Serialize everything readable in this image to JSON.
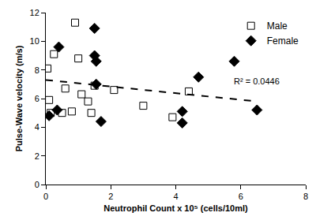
{
  "chart_data": {
    "type": "scatter",
    "x_label": "Neutrophil Count x 10⁵ (cells/10ml)",
    "y_label": "Pulse-Wave velocity (m/s)",
    "xlim": [
      0,
      8
    ],
    "xticks": [
      0,
      2,
      4,
      6,
      8
    ],
    "ylim": [
      0,
      12
    ],
    "yticks": [
      0,
      2,
      4,
      6,
      8,
      10,
      12
    ],
    "grid": false,
    "legend": "top-right",
    "series": [
      {
        "name": "Male",
        "type": "scatter",
        "marker": "square-open",
        "color": "#000000",
        "x": [
          0.05,
          0.1,
          0.15,
          0.25,
          0.5,
          0.6,
          0.8,
          0.9,
          1.0,
          1.1,
          1.3,
          1.4,
          1.5,
          2.1,
          3.0,
          3.9,
          4.4
        ],
        "values": [
          8.1,
          5.9,
          5.0,
          9.1,
          5.0,
          6.7,
          5.1,
          11.3,
          8.8,
          6.3,
          5.8,
          5.0,
          6.9,
          6.6,
          5.5,
          4.7,
          6.5
        ]
      },
      {
        "name": "Female",
        "type": "scatter",
        "marker": "diamond",
        "color": "#000000",
        "x": [
          0.1,
          0.35,
          0.4,
          1.5,
          1.5,
          1.55,
          1.55,
          1.7,
          4.2,
          4.2,
          4.7,
          5.8,
          6.5
        ],
        "values": [
          4.8,
          5.2,
          9.6,
          10.9,
          9.0,
          8.6,
          7.0,
          4.4,
          5.1,
          4.3,
          7.5,
          8.6,
          5.2
        ]
      },
      {
        "type": "line",
        "line_style": "dash",
        "color": "#000000",
        "x": [
          0,
          6.5
        ],
        "values": [
          7.3,
          5.8
        ]
      }
    ],
    "annotations": [
      {
        "text": "R² = 0.0446"
      }
    ]
  }
}
